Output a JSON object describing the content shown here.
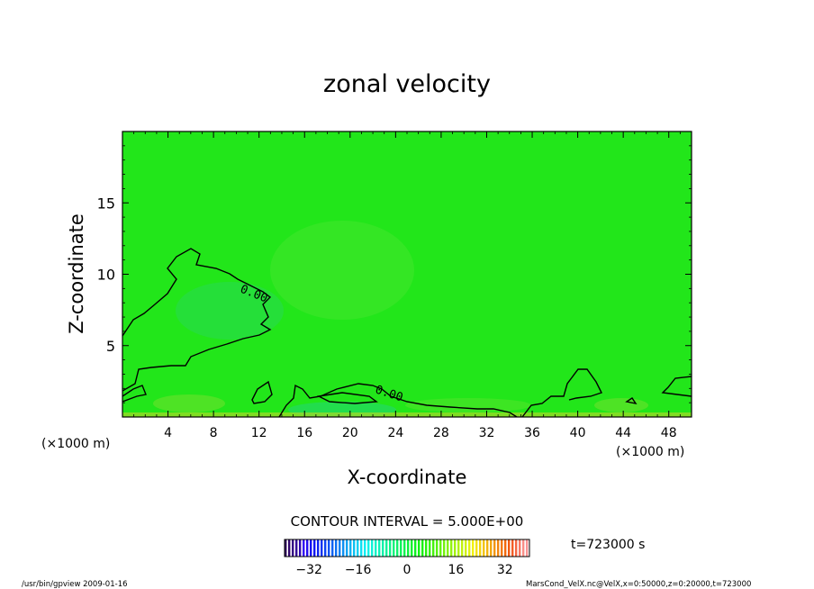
{
  "footer": {
    "left": "/usr/bin/gpview   2009-01-16",
    "right": "MarsCond_VelX.nc@VelX,x=0:50000,z=0:20000,t=723000"
  },
  "chart_data": {
    "type": "heatmap",
    "title": "zonal velocity",
    "xlabel": "X-coordinate",
    "ylabel": "Z-coordinate",
    "x_unit": "(×1000 m)",
    "y_unit": "(×1000 m)",
    "xlim": [
      0,
      50
    ],
    "ylim": [
      0,
      20
    ],
    "x_ticks": [
      "4",
      "8",
      "12",
      "16",
      "20",
      "24",
      "28",
      "32",
      "36",
      "40",
      "44",
      "48"
    ],
    "y_ticks": [
      "5",
      "10",
      "15"
    ],
    "contour_interval_text": "CONTOUR INTERVAL = 5.000E+00",
    "contour_labels": [
      "0.00",
      "0.00"
    ],
    "time_label": "t=723000 s",
    "colorbar": {
      "min": -40,
      "max": 40,
      "ticks": [
        "−32",
        "−16",
        "0",
        "16",
        "32"
      ]
    },
    "field_color": "#22e61a"
  }
}
